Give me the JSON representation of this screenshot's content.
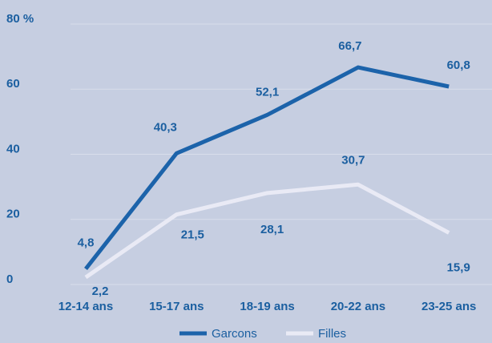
{
  "chart_data": {
    "type": "line",
    "categories": [
      "12-14 ans",
      "15-17 ans",
      "18-19 ans",
      "20-22 ans",
      "23-25 ans"
    ],
    "series": [
      {
        "name": "Garcons",
        "color": "#1c63aa",
        "values": [
          4.8,
          40.3,
          52.1,
          66.7,
          60.8
        ],
        "value_labels": [
          "4,8",
          "40,3",
          "52,1",
          "66,7",
          "60,8"
        ]
      },
      {
        "name": "Filles",
        "color": "#e9eaf5",
        "values": [
          2.2,
          21.5,
          28.1,
          30.7,
          15.9
        ],
        "value_labels": [
          "2,2",
          "21,5",
          "28,1",
          "30,7",
          "15,9"
        ]
      }
    ],
    "ylim": [
      0,
      80
    ],
    "yticks": [
      0,
      20,
      40,
      60,
      {
        "value": 80,
        "label": "80 %"
      }
    ],
    "grid": true
  }
}
